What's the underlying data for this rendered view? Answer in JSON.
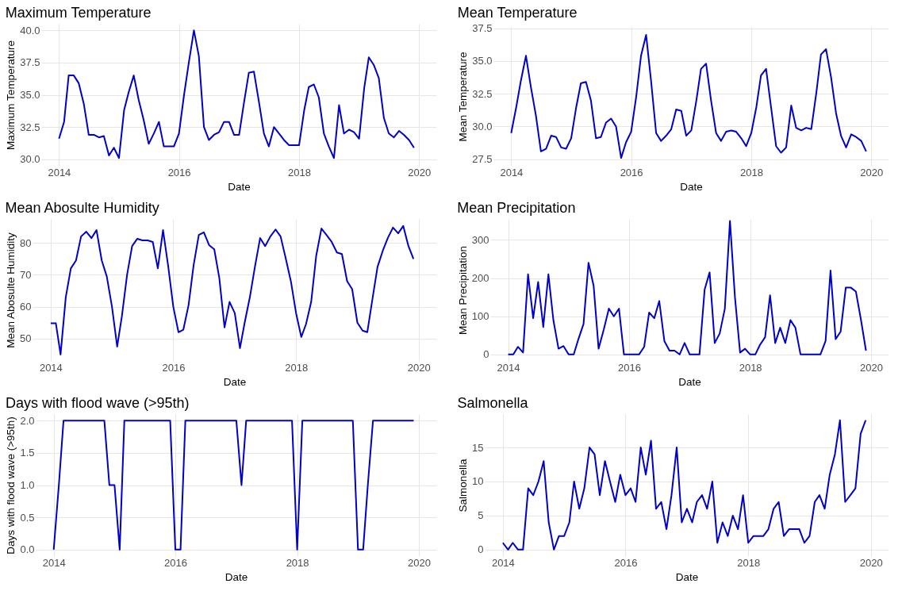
{
  "chart_data": [
    {
      "type": "line",
      "title": "Maximum Temperature",
      "xlabel": "Date",
      "ylabel": "Maximum Temperature",
      "color": "#0000cd",
      "grid": true,
      "x": [
        "2014-01",
        "2014-02",
        "2014-03",
        "2014-04",
        "2014-05",
        "2014-06",
        "2014-07",
        "2014-08",
        "2014-09",
        "2014-10",
        "2014-11",
        "2014-12",
        "2015-01",
        "2015-02",
        "2015-03",
        "2015-04",
        "2015-05",
        "2015-06",
        "2015-07",
        "2015-08",
        "2015-09",
        "2015-10",
        "2015-11",
        "2015-12",
        "2016-01",
        "2016-02",
        "2016-03",
        "2016-04",
        "2016-05",
        "2016-06",
        "2016-07",
        "2016-08",
        "2016-09",
        "2016-10",
        "2016-11",
        "2016-12",
        "2017-01",
        "2017-02",
        "2017-03",
        "2017-04",
        "2017-05",
        "2017-06",
        "2017-07",
        "2017-08",
        "2017-09",
        "2017-10",
        "2017-11",
        "2017-12",
        "2018-01",
        "2018-02",
        "2018-03",
        "2018-04",
        "2018-05",
        "2018-06",
        "2018-07",
        "2018-08",
        "2018-09",
        "2018-10",
        "2018-11",
        "2018-12",
        "2019-01",
        "2019-02",
        "2019-03",
        "2019-04",
        "2019-05",
        "2019-06",
        "2019-07",
        "2019-08",
        "2019-09",
        "2019-10",
        "2019-11",
        "2019-12"
      ],
      "values": [
        31.6,
        32.9,
        36.5,
        36.5,
        35.9,
        34.3,
        31.9,
        31.9,
        31.7,
        31.8,
        30.3,
        30.9,
        30.1,
        33.8,
        35.2,
        36.5,
        34.6,
        33.0,
        31.2,
        32.0,
        32.9,
        31.0,
        31.0,
        31.0,
        32.0,
        35.0,
        37.5,
        40.0,
        38.0,
        32.5,
        31.5,
        31.9,
        32.1,
        32.9,
        32.9,
        31.9,
        31.9,
        34.5,
        36.7,
        36.8,
        34.5,
        32.0,
        31.0,
        32.5,
        32.0,
        31.5,
        31.1,
        31.1,
        31.1,
        33.8,
        35.6,
        35.8,
        34.8,
        32.0,
        31.0,
        30.1,
        34.2,
        32.0,
        32.3,
        32.1,
        31.6,
        35.5,
        37.9,
        37.3,
        36.3,
        33.2,
        32.0,
        31.7,
        32.2,
        31.9,
        31.5,
        30.9
      ],
      "xlim": [
        "2013-09-15",
        "2020-04-15"
      ],
      "xticks": [
        "2014",
        "2016",
        "2018",
        "2020"
      ],
      "ylim": [
        29.5,
        40.5
      ],
      "yticks": [
        {
          "value": 30,
          "label": "30.0"
        },
        {
          "value": 32.5,
          "label": "32.5"
        },
        {
          "value": 35,
          "label": "35.0"
        },
        {
          "value": 37.5,
          "label": "37.5"
        },
        {
          "value": 40,
          "label": "40.0"
        }
      ]
    },
    {
      "type": "line",
      "title": "Mean Temperature",
      "xlabel": "Date",
      "ylabel": "Mean Temperature",
      "color": "#0000cd",
      "grid": true,
      "x": [
        "2014-01",
        "2014-02",
        "2014-03",
        "2014-04",
        "2014-05",
        "2014-06",
        "2014-07",
        "2014-08",
        "2014-09",
        "2014-10",
        "2014-11",
        "2014-12",
        "2015-01",
        "2015-02",
        "2015-03",
        "2015-04",
        "2015-05",
        "2015-06",
        "2015-07",
        "2015-08",
        "2015-09",
        "2015-10",
        "2015-11",
        "2015-12",
        "2016-01",
        "2016-02",
        "2016-03",
        "2016-04",
        "2016-05",
        "2016-06",
        "2016-07",
        "2016-08",
        "2016-09",
        "2016-10",
        "2016-11",
        "2016-12",
        "2017-01",
        "2017-02",
        "2017-03",
        "2017-04",
        "2017-05",
        "2017-06",
        "2017-07",
        "2017-08",
        "2017-09",
        "2017-10",
        "2017-11",
        "2017-12",
        "2018-01",
        "2018-02",
        "2018-03",
        "2018-04",
        "2018-05",
        "2018-06",
        "2018-07",
        "2018-08",
        "2018-09",
        "2018-10",
        "2018-11",
        "2018-12",
        "2019-01",
        "2019-02",
        "2019-03",
        "2019-04",
        "2019-05",
        "2019-06",
        "2019-07",
        "2019-08",
        "2019-09",
        "2019-10",
        "2019-11",
        "2019-12"
      ],
      "values": [
        29.5,
        31.5,
        33.5,
        35.4,
        33.0,
        30.8,
        28.1,
        28.3,
        29.3,
        29.2,
        28.4,
        28.3,
        29.1,
        31.5,
        33.3,
        33.4,
        32.0,
        29.1,
        29.2,
        30.3,
        30.6,
        30.0,
        27.6,
        28.8,
        29.6,
        32.3,
        35.4,
        37.0,
        33.5,
        29.5,
        28.9,
        29.3,
        29.8,
        31.3,
        31.2,
        29.3,
        29.7,
        32.0,
        34.4,
        34.8,
        32.0,
        29.5,
        28.9,
        29.6,
        29.7,
        29.6,
        29.1,
        28.5,
        29.5,
        31.5,
        33.9,
        34.4,
        31.5,
        28.5,
        28.0,
        28.4,
        31.6,
        29.9,
        29.7,
        29.9,
        29.8,
        32.6,
        35.5,
        35.9,
        33.8,
        31.0,
        29.3,
        28.4,
        29.4,
        29.2,
        28.9,
        28.1
      ],
      "xlim": [
        "2013-09-15",
        "2020-04-15"
      ],
      "xticks": [
        "2014",
        "2016",
        "2018",
        "2020"
      ],
      "ylim": [
        27.0,
        37.6
      ],
      "yticks": [
        {
          "value": 27.5,
          "label": "27.5"
        },
        {
          "value": 30,
          "label": "30.0"
        },
        {
          "value": 32.5,
          "label": "32.5"
        },
        {
          "value": 35,
          "label": "35.0"
        },
        {
          "value": 37.5,
          "label": "37.5"
        }
      ]
    },
    {
      "type": "line",
      "title": "Mean Abosulte Humidity",
      "xlabel": "Date",
      "ylabel": "Mean Abosulte Humidity",
      "color": "#0000cd",
      "grid": true,
      "x": [
        "2014-01",
        "2014-02",
        "2014-03",
        "2014-04",
        "2014-05",
        "2014-06",
        "2014-07",
        "2014-08",
        "2014-09",
        "2014-10",
        "2014-11",
        "2014-12",
        "2015-01",
        "2015-02",
        "2015-03",
        "2015-04",
        "2015-05",
        "2015-06",
        "2015-07",
        "2015-08",
        "2015-09",
        "2015-10",
        "2015-11",
        "2015-12",
        "2016-01",
        "2016-02",
        "2016-03",
        "2016-04",
        "2016-05",
        "2016-06",
        "2016-07",
        "2016-08",
        "2016-09",
        "2016-10",
        "2016-11",
        "2016-12",
        "2017-01",
        "2017-02",
        "2017-03",
        "2017-04",
        "2017-05",
        "2017-06",
        "2017-07",
        "2017-08",
        "2017-09",
        "2017-10",
        "2017-11",
        "2017-12",
        "2018-01",
        "2018-02",
        "2018-03",
        "2018-04",
        "2018-05",
        "2018-06",
        "2018-07",
        "2018-08",
        "2018-09",
        "2018-10",
        "2018-11",
        "2018-12",
        "2019-01",
        "2019-02",
        "2019-03",
        "2019-04",
        "2019-05",
        "2019-06",
        "2019-07",
        "2019-08",
        "2019-09",
        "2019-10",
        "2019-11",
        "2019-12"
      ],
      "values": [
        54.8,
        54.8,
        45.0,
        63,
        72,
        74.5,
        82,
        83.5,
        81.5,
        84,
        74.5,
        69.5,
        60,
        47.5,
        57,
        70,
        79,
        81.3,
        80.8,
        80.8,
        80.3,
        72,
        84,
        73,
        60,
        52,
        52.8,
        60.5,
        73,
        82.5,
        83.3,
        79.3,
        78,
        69,
        53.5,
        61.5,
        58,
        47,
        55,
        63,
        72.5,
        81.5,
        79,
        82,
        84.2,
        82,
        75,
        68,
        58,
        50.5,
        54.5,
        61.5,
        76,
        84.5,
        82.5,
        80.3,
        77,
        76.5,
        68,
        65.5,
        55,
        52.5,
        52,
        62.5,
        72.5,
        77.5,
        81.5,
        84.8,
        83,
        85.3,
        79,
        75
      ],
      "xlim": [
        "2013-09-15",
        "2020-04-15"
      ],
      "xticks": [
        "2014",
        "2016",
        "2018",
        "2020"
      ],
      "ylim": [
        43,
        87.5
      ],
      "yticks": [
        50,
        60,
        70,
        80
      ]
    },
    {
      "type": "line",
      "title": "Mean Precipitation",
      "xlabel": "Date",
      "ylabel": "Mean Precipitation",
      "color": "#0000cd",
      "grid": true,
      "x": [
        "2014-01",
        "2014-02",
        "2014-03",
        "2014-04",
        "2014-05",
        "2014-06",
        "2014-07",
        "2014-08",
        "2014-09",
        "2014-10",
        "2014-11",
        "2014-12",
        "2015-01",
        "2015-02",
        "2015-03",
        "2015-04",
        "2015-05",
        "2015-06",
        "2015-07",
        "2015-08",
        "2015-09",
        "2015-10",
        "2015-11",
        "2015-12",
        "2016-01",
        "2016-02",
        "2016-03",
        "2016-04",
        "2016-05",
        "2016-06",
        "2016-07",
        "2016-08",
        "2016-09",
        "2016-10",
        "2016-11",
        "2016-12",
        "2017-01",
        "2017-02",
        "2017-03",
        "2017-04",
        "2017-05",
        "2017-06",
        "2017-07",
        "2017-08",
        "2017-09",
        "2017-10",
        "2017-11",
        "2017-12",
        "2018-01",
        "2018-02",
        "2018-03",
        "2018-04",
        "2018-05",
        "2018-06",
        "2018-07",
        "2018-08",
        "2018-09",
        "2018-10",
        "2018-11",
        "2018-12",
        "2019-01",
        "2019-02",
        "2019-03",
        "2019-04",
        "2019-05",
        "2019-06",
        "2019-07",
        "2019-08",
        "2019-09",
        "2019-10",
        "2019-11",
        "2019-12"
      ],
      "values": [
        0,
        0,
        20,
        5,
        210,
        95,
        190,
        72,
        210,
        90,
        15,
        22,
        0,
        0,
        40,
        80,
        240,
        180,
        15,
        65,
        120,
        100,
        120,
        0,
        0,
        0,
        0,
        20,
        110,
        95,
        140,
        35,
        10,
        10,
        0,
        30,
        0,
        0,
        0,
        170,
        215,
        30,
        55,
        120,
        350,
        150,
        5,
        15,
        0,
        0,
        25,
        45,
        155,
        30,
        70,
        30,
        90,
        70,
        0,
        0,
        0,
        0,
        0,
        35,
        220,
        40,
        60,
        175,
        175,
        165,
        90,
        10
      ],
      "xlim": [
        "2013-09-15",
        "2020-04-15"
      ],
      "xticks": [
        "2014",
        "2016",
        "2018",
        "2020"
      ],
      "ylim": [
        -17,
        355
      ],
      "yticks": [
        0,
        100,
        200,
        300
      ]
    },
    {
      "type": "line",
      "title": "Days with flood wave (>95th)",
      "xlabel": "Date",
      "ylabel": "Days with flood wave (>95th)",
      "color": "#0000cd",
      "grid": true,
      "x": [
        "2014-01",
        "2014-02",
        "2014-03",
        "2014-04",
        "2014-05",
        "2014-06",
        "2014-07",
        "2014-08",
        "2014-09",
        "2014-10",
        "2014-11",
        "2014-12",
        "2015-01",
        "2015-02",
        "2015-03",
        "2015-04",
        "2015-05",
        "2015-06",
        "2015-07",
        "2015-08",
        "2015-09",
        "2015-10",
        "2015-11",
        "2015-12",
        "2016-01",
        "2016-02",
        "2016-03",
        "2016-04",
        "2016-05",
        "2016-06",
        "2016-07",
        "2016-08",
        "2016-09",
        "2016-10",
        "2016-11",
        "2016-12",
        "2017-01",
        "2017-02",
        "2017-03",
        "2017-04",
        "2017-05",
        "2017-06",
        "2017-07",
        "2017-08",
        "2017-09",
        "2017-10",
        "2017-11",
        "2017-12",
        "2018-01",
        "2018-02",
        "2018-03",
        "2018-04",
        "2018-05",
        "2018-06",
        "2018-07",
        "2018-08",
        "2018-09",
        "2018-10",
        "2018-11",
        "2018-12",
        "2019-01",
        "2019-02",
        "2019-03",
        "2019-04",
        "2019-05",
        "2019-06",
        "2019-07",
        "2019-08",
        "2019-09",
        "2019-10",
        "2019-11",
        "2019-12"
      ],
      "values": [
        0,
        1,
        2,
        2,
        2,
        2,
        2,
        2,
        2,
        2,
        2,
        1,
        1,
        0,
        2,
        2,
        2,
        2,
        2,
        2,
        2,
        2,
        2,
        2,
        0,
        0,
        2,
        2,
        2,
        2,
        2,
        2,
        2,
        2,
        2,
        2,
        2,
        1,
        2,
        2,
        2,
        2,
        2,
        2,
        2,
        2,
        2,
        2,
        0,
        2,
        2,
        2,
        2,
        2,
        2,
        2,
        2,
        2,
        2,
        2,
        0,
        0,
        1,
        2,
        2,
        2,
        2,
        2,
        2,
        2,
        2,
        2
      ],
      "xlim": [
        "2013-09-15",
        "2020-04-15"
      ],
      "xticks": [
        "2014",
        "2016",
        "2018",
        "2020"
      ],
      "ylim": [
        -0.1,
        2.1
      ],
      "yticks": [
        {
          "value": 0,
          "label": "0.0"
        },
        {
          "value": 0.5,
          "label": "0.5"
        },
        {
          "value": 1,
          "label": "1.0"
        },
        {
          "value": 1.5,
          "label": "1.5"
        },
        {
          "value": 2,
          "label": "2.0"
        }
      ]
    },
    {
      "type": "line",
      "title": "Salmonella",
      "xlabel": "Date",
      "ylabel": "Salmonella",
      "color": "#0000cd",
      "grid": true,
      "x": [
        "2014-01",
        "2014-02",
        "2014-03",
        "2014-04",
        "2014-05",
        "2014-06",
        "2014-07",
        "2014-08",
        "2014-09",
        "2014-10",
        "2014-11",
        "2014-12",
        "2015-01",
        "2015-02",
        "2015-03",
        "2015-04",
        "2015-05",
        "2015-06",
        "2015-07",
        "2015-08",
        "2015-09",
        "2015-10",
        "2015-11",
        "2015-12",
        "2016-01",
        "2016-02",
        "2016-03",
        "2016-04",
        "2016-05",
        "2016-06",
        "2016-07",
        "2016-08",
        "2016-09",
        "2016-10",
        "2016-11",
        "2016-12",
        "2017-01",
        "2017-02",
        "2017-03",
        "2017-04",
        "2017-05",
        "2017-06",
        "2017-07",
        "2017-08",
        "2017-09",
        "2017-10",
        "2017-11",
        "2017-12",
        "2018-01",
        "2018-02",
        "2018-03",
        "2018-04",
        "2018-05",
        "2018-06",
        "2018-07",
        "2018-08",
        "2018-09",
        "2018-10",
        "2018-11",
        "2018-12",
        "2019-01",
        "2019-02",
        "2019-03",
        "2019-04",
        "2019-05",
        "2019-06",
        "2019-07",
        "2019-08",
        "2019-09",
        "2019-10",
        "2019-11",
        "2019-12"
      ],
      "values": [
        1,
        0,
        1,
        0,
        0,
        9,
        8,
        10,
        13,
        4,
        0,
        2,
        2,
        4,
        10,
        6,
        9,
        15,
        14,
        8,
        13,
        10,
        7,
        11,
        8,
        9,
        7,
        15,
        11,
        16,
        6,
        7,
        3,
        8,
        15,
        4,
        6,
        4,
        7,
        8,
        6,
        10,
        1,
        4,
        2,
        5,
        3,
        8,
        1,
        2,
        2,
        2,
        3,
        6,
        7,
        2,
        3,
        3,
        3,
        1,
        2,
        7,
        8,
        6,
        11,
        14,
        19,
        7,
        8,
        9,
        17,
        19
      ],
      "xlim": [
        "2013-09-15",
        "2020-04-15"
      ],
      "xticks": [
        "2014",
        "2016",
        "2018",
        "2020"
      ],
      "ylim": [
        -0.95,
        19.9
      ],
      "yticks": [
        0,
        5,
        10,
        15
      ]
    }
  ]
}
